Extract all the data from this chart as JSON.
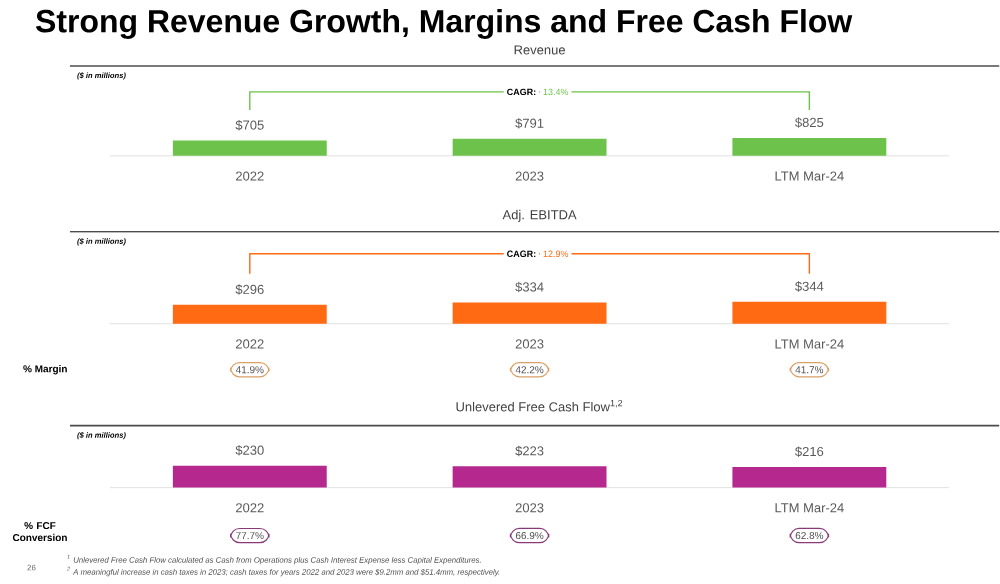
{
  "chart_data": [
    {
      "type": "bar",
      "title": "Strong Revenue Growth, Margins and Free Cash Flow",
      "subtitle": "Revenue",
      "categories": [
        "2022",
        "2023",
        "LTM Mar-24"
      ],
      "values": [
        705,
        791,
        825
      ],
      "value_labels": [
        "$705",
        "$791",
        "$825"
      ],
      "color": "#6cc24a",
      "annotations": [
        "($ in millions)",
        "CAGR:",
        "13.4%"
      ]
    },
    {
      "type": "bar",
      "subtitle": "Adj. EBITDA",
      "categories": [
        "2022",
        "2023",
        "LTM Mar-24"
      ],
      "values": [
        296,
        334,
        344
      ],
      "value_labels": [
        "$296",
        "$334",
        "$344"
      ],
      "color": "#ff6a13",
      "annotations": [
        "($ in millions)",
        "CAGR:",
        "12.9%",
        "% Margin",
        "41.9%",
        "42.2%",
        "41.7%"
      ]
    },
    {
      "type": "bar",
      "subtitle": "Unlevered Free Cash Flow$^{1,2}$",
      "categories": [
        "2022",
        "2023",
        "LTM Mar-24"
      ],
      "values": [
        230,
        223,
        216
      ],
      "value_labels": [
        "$230",
        "$223",
        "$216"
      ],
      "color": "#b5298f",
      "annotations": [
        "($ in millions)",
        "% FCF Conversion",
        "77.7%",
        "66.9%",
        "62.8%",
        "$^{1}$ Unlevered Free Cash Flow calculated as Cash from Operations plus Cash Interest Expense less Capital Expenditures.",
        "$^{2}$ A meaningful increase in cash taxes in 2023; cash taxes for years 2022 and 2023 were $9.2mm and $51.4mm, respectively.",
        "26"
      ]
    }
  ]
}
